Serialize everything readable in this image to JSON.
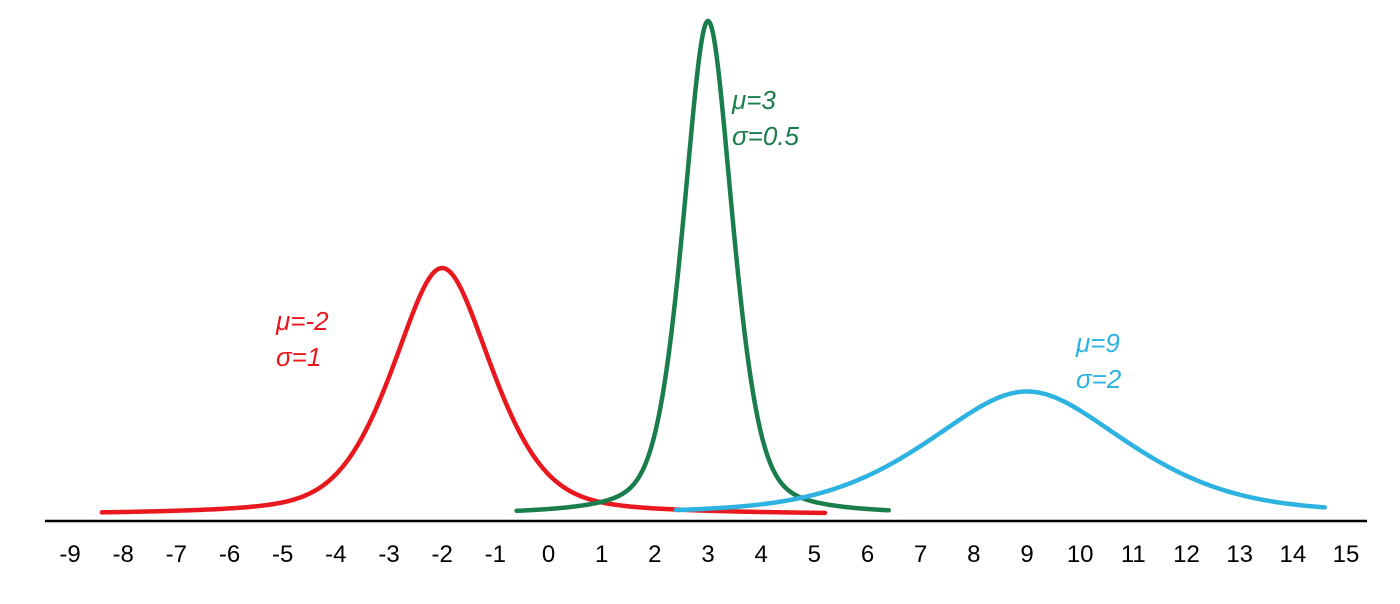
{
  "chart_data": {
    "type": "line",
    "title": "",
    "xlabel": "",
    "ylabel": "",
    "grid": false,
    "xlim": [
      -9,
      15
    ],
    "x_ticks": [
      -9,
      -8,
      -7,
      -6,
      -5,
      -4,
      -3,
      -2,
      -1,
      0,
      1,
      2,
      3,
      4,
      5,
      6,
      7,
      8,
      9,
      10,
      11,
      12,
      13,
      14,
      15
    ],
    "series": [
      {
        "mu": -2,
        "sigma": 1,
        "x_range": [
          -8.4,
          5.2
        ],
        "color": "#e8181e",
        "label_lines": [
          "μ=-2",
          "σ=1"
        ]
      },
      {
        "mu": 3,
        "sigma": 0.5,
        "x_range": [
          -0.6,
          6.4
        ],
        "color": "#1a7d4c",
        "label_lines": [
          "μ=3",
          "σ=0.5"
        ]
      },
      {
        "mu": 9,
        "sigma": 2,
        "x_range": [
          2.4,
          14.6
        ],
        "color": "#2eb2e2",
        "label_lines": [
          "μ=9",
          "σ=2"
        ]
      }
    ]
  }
}
